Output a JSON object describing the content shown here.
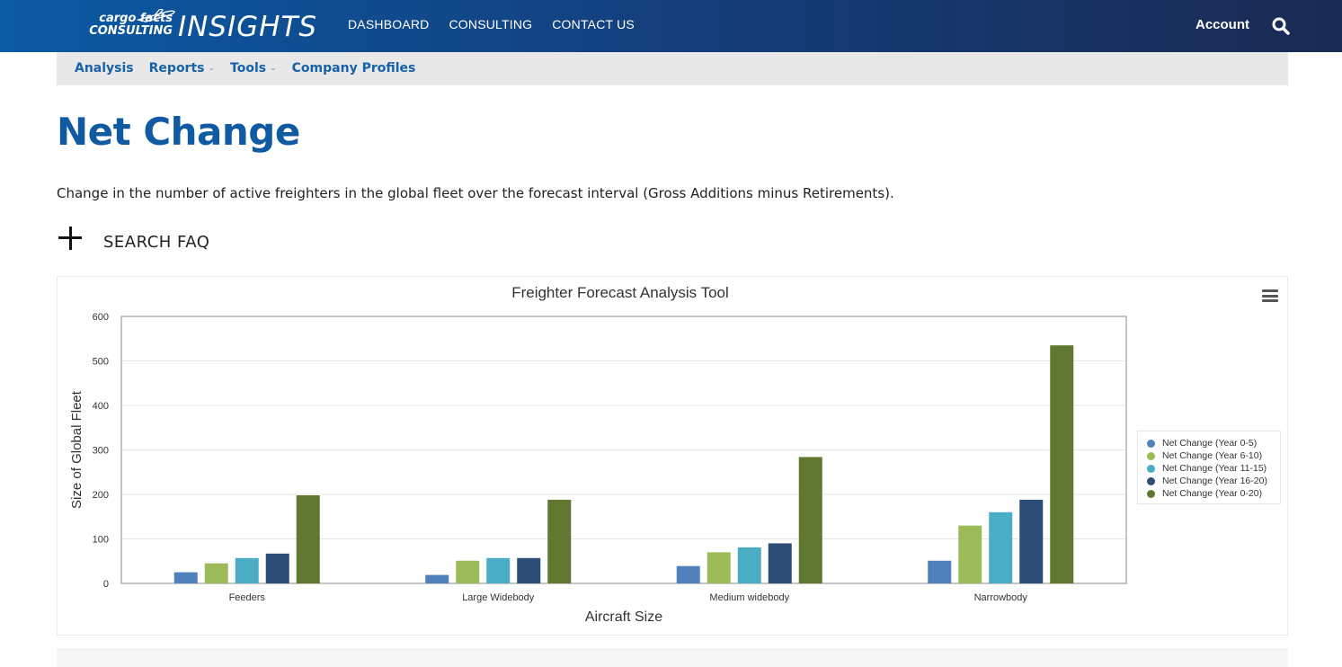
{
  "header": {
    "logo_line1": "cargo facts",
    "logo_line2": "CONSULTING",
    "logo_product": "INSIGHTS",
    "nav": [
      {
        "label": "DASHBOARD"
      },
      {
        "label": "CONSULTING"
      },
      {
        "label": "CONTACT US"
      }
    ],
    "account_label": "Account",
    "search_icon": "search-icon"
  },
  "subnav": {
    "items": [
      {
        "label": "Analysis",
        "has_dropdown": false
      },
      {
        "label": "Reports",
        "has_dropdown": true
      },
      {
        "label": "Tools",
        "has_dropdown": true
      },
      {
        "label": "Company Profiles",
        "has_dropdown": false
      }
    ]
  },
  "page": {
    "title": "Net Change",
    "description": "Change in the number of active freighters in the global fleet over the forecast interval (Gross Additions minus Retirements).",
    "faq_label": "SEARCH FAQ"
  },
  "chart_data": {
    "type": "bar",
    "title": "Freighter Forecast Analysis Tool",
    "xlabel": "Aircraft Size",
    "ylabel": "Size of Global Fleet",
    "ylim": [
      0,
      600
    ],
    "yticks": [
      0,
      100,
      200,
      300,
      400,
      500,
      600
    ],
    "grid": true,
    "legend_position": "right",
    "categories": [
      "Feeders",
      "Large Widebody",
      "Medium widebody",
      "Narrowbody"
    ],
    "series": [
      {
        "name": "Net Change (Year 0-5)",
        "color": "#4f81bd",
        "values": [
          25,
          19,
          39,
          51
        ]
      },
      {
        "name": "Net Change (Year 6-10)",
        "color": "#9bbb59",
        "values": [
          45,
          51,
          70,
          130
        ]
      },
      {
        "name": "Net Change (Year 11-15)",
        "color": "#4bacc6",
        "values": [
          57,
          57,
          81,
          160
        ]
      },
      {
        "name": "Net Change (Year 16-20)",
        "color": "#2c4d75",
        "values": [
          67,
          57,
          90,
          188
        ]
      },
      {
        "name": "Net Change (Year 0-20)",
        "color": "#617831",
        "values": [
          198,
          188,
          284,
          535
        ]
      }
    ]
  }
}
